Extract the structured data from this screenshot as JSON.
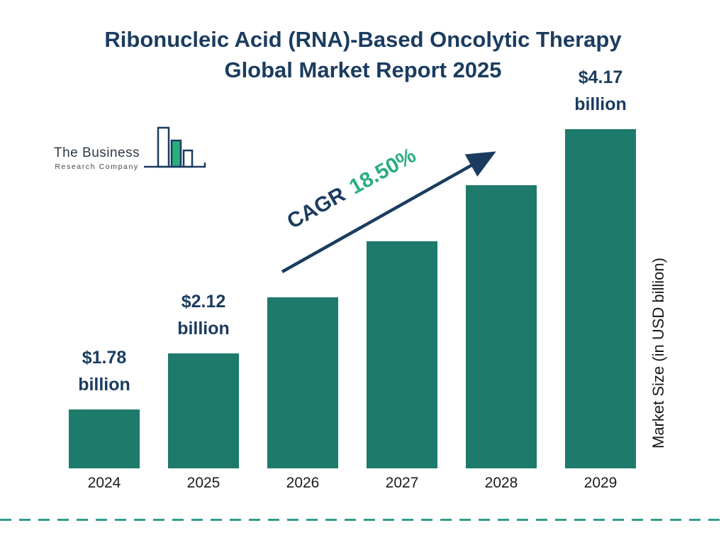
{
  "title": {
    "line1": "Ribonucleic Acid (RNA)-Based Oncolytic Therapy",
    "line2": "Global Market Report 2025"
  },
  "logo": {
    "line1": "The Business",
    "line2": "Research Company"
  },
  "cagr": {
    "label": "CAGR",
    "value": "18.50%"
  },
  "axis": {
    "y_label": "Market Size (in USD billion)"
  },
  "colors": {
    "bar": "#1E7A6B",
    "navy": "#1B3C5F",
    "green": "#2BAE7E",
    "dash": "#2F9E8E"
  },
  "chart_data": {
    "type": "bar",
    "title": "Ribonucleic Acid (RNA)-Based Oncolytic Therapy Global Market Report 2025",
    "xlabel": "",
    "ylabel": "Market Size (in USD billion)",
    "ylim": [
      0,
      4.5
    ],
    "grid": false,
    "legend": "none",
    "cagr": "18.50%",
    "categories": [
      "2024",
      "2025",
      "2026",
      "2027",
      "2028",
      "2029"
    ],
    "values": [
      1.78,
      2.12,
      2.51,
      2.98,
      3.53,
      4.17
    ],
    "bars": [
      {
        "year": "2024",
        "value": 1.78,
        "label_value": "$1.78",
        "label_unit": "billion"
      },
      {
        "year": "2025",
        "value": 2.12,
        "label_value": "$2.12",
        "label_unit": "billion"
      },
      {
        "year": "2026",
        "value": 2.51
      },
      {
        "year": "2027",
        "value": 2.98
      },
      {
        "year": "2028",
        "value": 3.53
      },
      {
        "year": "2029",
        "value": 4.17,
        "label_value": "$4.17",
        "label_unit": "billion"
      }
    ]
  }
}
